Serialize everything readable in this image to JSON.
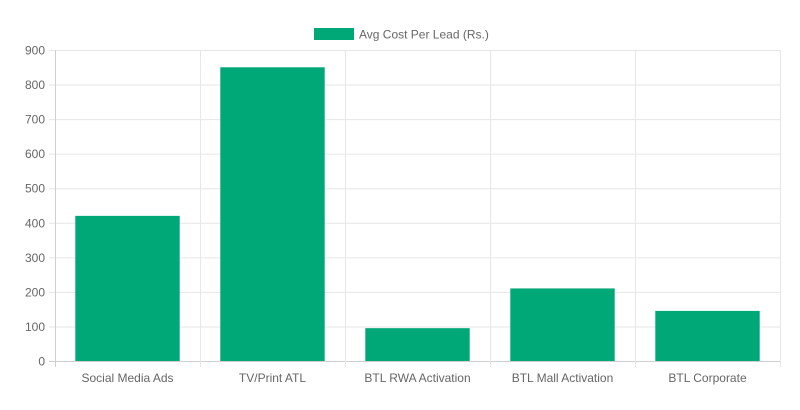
{
  "chart_data": {
    "type": "bar",
    "title": "",
    "xlabel": "",
    "ylabel": "",
    "categories": [
      "Social Media Ads",
      "TV/Print ATL",
      "BTL RWA Activation",
      "BTL Mall Activation",
      "BTL Corporate"
    ],
    "series": [
      {
        "name": "Avg Cost Per Lead (Rs.)",
        "values": [
          420,
          850,
          95,
          210,
          145
        ],
        "color": "#00a878"
      }
    ],
    "ylim": [
      0,
      900
    ],
    "yticks": [
      0,
      100,
      200,
      300,
      400,
      500,
      600,
      700,
      800,
      900
    ],
    "grid": true,
    "legend_position": "top-center"
  }
}
